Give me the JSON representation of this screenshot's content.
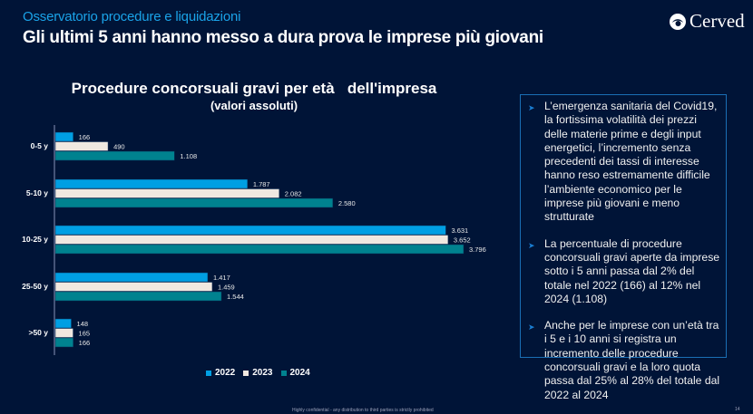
{
  "header": {
    "subtitle": "Osservatorio procedure e liquidazioni",
    "headline": "Gli ultimi 5 anni hanno messo a dura prova le imprese più giovani",
    "logo_text": "Cerved",
    "logo_icon": "cerved-swirl-icon"
  },
  "chart_data": {
    "type": "bar",
    "orientation": "horizontal",
    "title": "Procedure concorsuali gravi per età   dell'impresa",
    "subtitle": "(valori assoluti)",
    "xlabel": "",
    "ylabel": "",
    "grid": false,
    "legend_position": "bottom",
    "xlim": [
      0,
      3800
    ],
    "categories": [
      "0-5 y",
      "5-10 y",
      "10-25 y",
      "25-50 y",
      ">50 y"
    ],
    "series": [
      {
        "name": "2022",
        "color": "#009fe3",
        "values": [
          166,
          1787,
          3631,
          1417,
          148
        ],
        "labels": [
          "166",
          "1.787",
          "3.631",
          "1.417",
          "148"
        ]
      },
      {
        "name": "2023",
        "color": "#f0e8e0",
        "values": [
          490,
          2082,
          3652,
          1459,
          165
        ],
        "labels": [
          "490",
          "2.082",
          "3.652",
          "1.459",
          "165"
        ]
      },
      {
        "name": "2024",
        "color": "#00828f",
        "values": [
          1108,
          2580,
          3796,
          1544,
          166
        ],
        "labels": [
          "1.108",
          "2.580",
          "3.796",
          "1.544",
          "166"
        ]
      }
    ]
  },
  "textbox": {
    "bullet_icon": "arrowhead-bullet-icon",
    "bullets": [
      "L’emergenza sanitaria del Covid19, la fortissima volatilità dei prezzi delle materie prime e degli input energetici, l’incremento senza precedenti dei tassi di interesse hanno reso estremamente difficile l’ambiente economico per le imprese più giovani e meno strutturate",
      "La percentuale di procedure concorsuali gravi aperte da imprese sotto i 5 anni passa dal 2% del totale nel 2022 (166) al 12% nel 2024 (1.108)",
      "Anche per le imprese con un’età tra i 5 e i 10 anni si registra un incremento delle procedure concorsuali gravi e la loro quota passa dal 25% al 28% del totale dal 2022 al 2024"
    ]
  },
  "footer": {
    "text": "Highly confidential - any distribution to third parties is strictly prohibited",
    "page_number": "14"
  }
}
